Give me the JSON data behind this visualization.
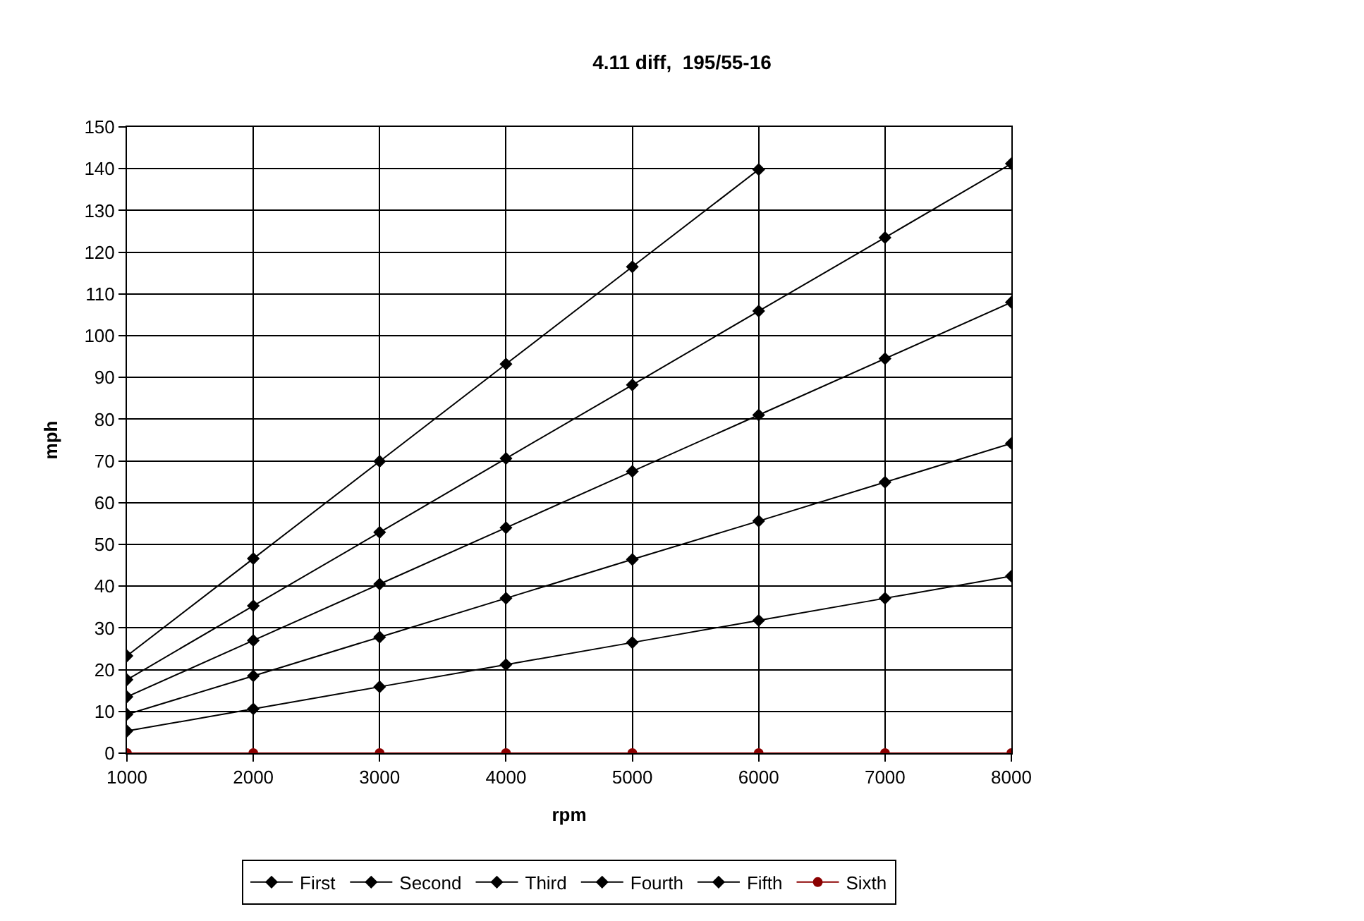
{
  "chart_data": {
    "type": "line",
    "title": "4.11 diff,  195/55-16",
    "xlabel": "rpm",
    "ylabel": "mph",
    "x": [
      1000,
      2000,
      3000,
      4000,
      5000,
      6000,
      7000,
      8000
    ],
    "series": [
      {
        "name": "First",
        "color": "#000000",
        "marker": "diamond",
        "values": [
          5.3,
          10.6,
          15.9,
          21.2,
          26.5,
          31.8,
          37.1,
          42.4
        ]
      },
      {
        "name": "Second",
        "color": "#000000",
        "marker": "diamond",
        "values": [
          9.3,
          18.5,
          27.8,
          37.1,
          46.4,
          55.6,
          64.9,
          74.2
        ]
      },
      {
        "name": "Third",
        "color": "#000000",
        "marker": "diamond",
        "values": [
          13.5,
          27.0,
          40.5,
          54.0,
          67.5,
          81.0,
          94.5,
          108.0
        ]
      },
      {
        "name": "Fourth",
        "color": "#000000",
        "marker": "diamond",
        "values": [
          17.6,
          35.3,
          52.9,
          70.6,
          88.2,
          105.9,
          123.5,
          141.2
        ]
      },
      {
        "name": "Fifth",
        "color": "#000000",
        "marker": "diamond",
        "values": [
          23.3,
          46.6,
          69.9,
          93.2,
          116.5,
          139.8,
          null,
          null
        ]
      },
      {
        "name": "Sixth",
        "color": "#8b0000",
        "marker": "circle",
        "values": [
          0,
          0,
          0,
          0,
          0,
          0,
          0,
          0
        ]
      }
    ],
    "xlim": [
      1000,
      8000
    ],
    "xticks": [
      1000,
      2000,
      3000,
      4000,
      5000,
      6000,
      7000,
      8000
    ],
    "ylim": [
      0,
      150
    ],
    "yticks": [
      0,
      10,
      20,
      30,
      40,
      50,
      60,
      70,
      80,
      90,
      100,
      110,
      120,
      130,
      140,
      150
    ],
    "grid": true,
    "legend": "bottom",
    "line_style": "solid"
  }
}
